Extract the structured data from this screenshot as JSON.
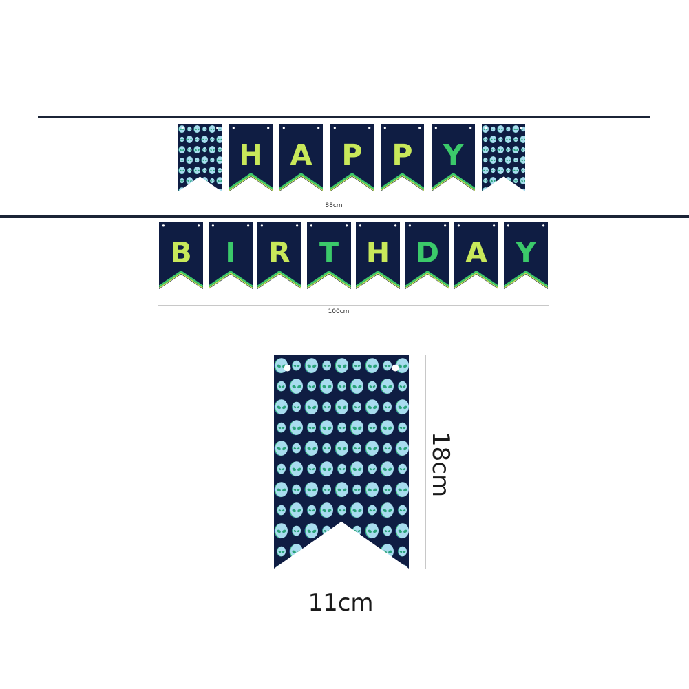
{
  "banner_top": {
    "letters": [
      "",
      "H",
      "A",
      "P",
      "P",
      "Y",
      ""
    ],
    "width_label": "88cm"
  },
  "banner_bottom": {
    "letters": [
      "B",
      "I",
      "R",
      "T",
      "H",
      "D",
      "A",
      "Y"
    ],
    "width_label": "100cm"
  },
  "single_flag": {
    "width_label": "11cm",
    "height_label": "18cm"
  },
  "colors": {
    "navy": "#0f1d43",
    "green": "#3bc96a",
    "lime": "#c8e85a",
    "alien_face": "#a8dcef",
    "string": "#1b2436"
  }
}
